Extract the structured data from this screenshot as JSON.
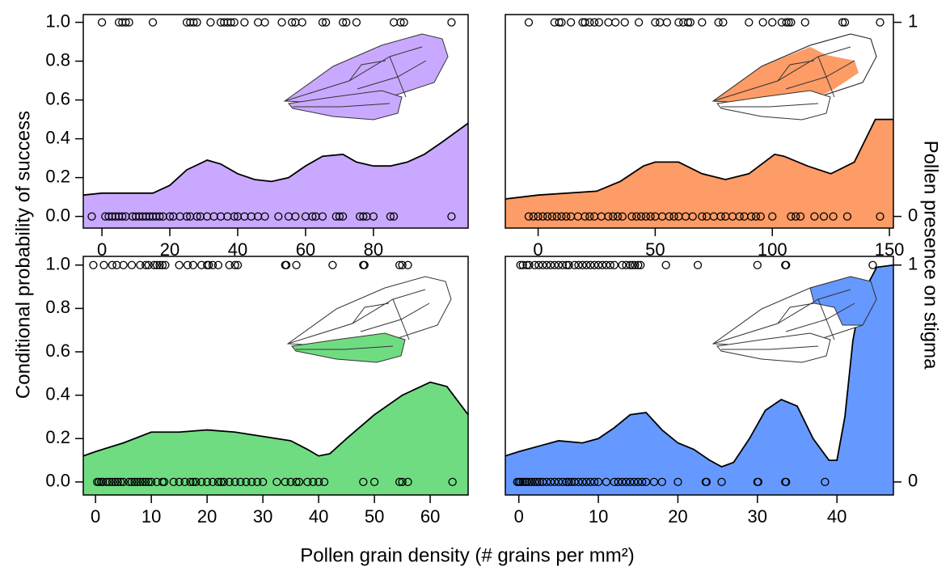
{
  "xlabel": "Pollen grain density (# grains per mm²)",
  "ylabel": "Conditional probability of success",
  "y2label": "Pollen presence on stigma",
  "chart_data": [
    {
      "type": "area",
      "color": "#c9a9ff",
      "x": [
        -5.5,
        0,
        10,
        15,
        20,
        25,
        31,
        35,
        40,
        45,
        50,
        55,
        60,
        65,
        71,
        75,
        80,
        85,
        90,
        95,
        100,
        107.9
      ],
      "values": [
        0.11,
        0.12,
        0.12,
        0.12,
        0.16,
        0.24,
        0.29,
        0.27,
        0.22,
        0.19,
        0.18,
        0.2,
        0.26,
        0.31,
        0.32,
        0.28,
        0.26,
        0.26,
        0.28,
        0.32,
        0.38,
        0.48
      ],
      "xlim": [
        -5.5,
        107.9
      ],
      "ylim": [
        -0.06,
        1.04
      ],
      "xticks": [
        0,
        20,
        40,
        60,
        80
      ],
      "yticks": [
        {
          "value": 0,
          "label": "0.0"
        },
        {
          "value": 0.2,
          "label": "0.2"
        },
        {
          "value": 0.4,
          "label": "0.4"
        },
        {
          "value": 0.6,
          "label": "0.6"
        },
        {
          "value": 0.8,
          "label": "0.8"
        },
        {
          "value": 1,
          "label": "1.0"
        }
      ],
      "points": [
        {
          "y": 1,
          "x": [
            0,
            5,
            6,
            7,
            8,
            15,
            25,
            26,
            27,
            28,
            32,
            35,
            36,
            37,
            38,
            39,
            42,
            46,
            48,
            53,
            56,
            57,
            59,
            65,
            66,
            71,
            72,
            75,
            86,
            88,
            89,
            103
          ]
        },
        {
          "y": 0,
          "x": [
            -3,
            1,
            2,
            3,
            4,
            5,
            6,
            7,
            9,
            10,
            11,
            12,
            13,
            14,
            15,
            16,
            17,
            18,
            20,
            21,
            23,
            25,
            26,
            28,
            29,
            31,
            33,
            35,
            37,
            39,
            40,
            42,
            44,
            46,
            48,
            52,
            55,
            57,
            60,
            62,
            63,
            65,
            69,
            70,
            71,
            76,
            77,
            78,
            80,
            85,
            86,
            103
          ]
        }
      ]
    },
    {
      "type": "area",
      "color": "#fd9c66",
      "x": [
        -14,
        0,
        25,
        35,
        45,
        50,
        60,
        70,
        80,
        90,
        101,
        105,
        115,
        125,
        135,
        144,
        151.7
      ],
      "values": [
        0.09,
        0.11,
        0.13,
        0.18,
        0.26,
        0.28,
        0.28,
        0.22,
        0.19,
        0.22,
        0.32,
        0.31,
        0.26,
        0.22,
        0.28,
        0.5,
        0.5
      ],
      "xlim": [
        -14,
        151.7
      ],
      "ylim": [
        -0.06,
        1.04
      ],
      "y2lim": [
        -0.06,
        1.04
      ],
      "xticks": [
        0,
        50,
        100,
        150
      ],
      "y2ticks": [
        0,
        1
      ],
      "points": [
        {
          "y": 1,
          "x": [
            -4,
            7,
            9,
            10,
            14,
            19,
            20,
            22,
            24,
            26,
            30,
            33,
            37,
            43,
            50,
            52,
            55,
            60,
            62,
            64,
            65,
            70,
            77,
            79,
            90,
            96,
            100,
            104,
            106,
            107,
            108,
            114,
            130,
            131,
            146
          ]
        },
        {
          "y": 0,
          "x": [
            -4,
            -2,
            0,
            2,
            4,
            6,
            8,
            10,
            12,
            14,
            17,
            20,
            22,
            24,
            27,
            30,
            32,
            34,
            36,
            40,
            42,
            44,
            46,
            48,
            50,
            53,
            56,
            58,
            60,
            63,
            66,
            70,
            72,
            75,
            78,
            80,
            83,
            86,
            88,
            91,
            93,
            95,
            100,
            108,
            110,
            112,
            118,
            122,
            126,
            132,
            146
          ]
        }
      ]
    },
    {
      "type": "area",
      "color": "#70dc82",
      "x": [
        -2.2,
        0,
        5,
        10,
        15,
        20,
        25,
        30,
        35,
        38,
        40,
        42,
        45,
        50,
        55,
        60,
        63,
        66.8
      ],
      "values": [
        0.12,
        0.14,
        0.18,
        0.23,
        0.23,
        0.24,
        0.23,
        0.21,
        0.19,
        0.15,
        0.12,
        0.13,
        0.2,
        0.31,
        0.4,
        0.46,
        0.44,
        0.31
      ],
      "xlim": [
        -2.2,
        66.8
      ],
      "ylim": [
        -0.06,
        1.04
      ],
      "xticks": [
        0,
        10,
        20,
        30,
        40,
        50,
        60
      ],
      "yticks": [
        {
          "value": 0,
          "label": "0.0"
        },
        {
          "value": 0.2,
          "label": "0.2"
        },
        {
          "value": 0.4,
          "label": "0.4"
        },
        {
          "value": 0.6,
          "label": "0.6"
        },
        {
          "value": 0.8,
          "label": "0.8"
        },
        {
          "value": 1,
          "label": "1.0"
        }
      ],
      "points": [
        {
          "y": 1,
          "x": [
            -0.4,
            1.5,
            3,
            3.8,
            5,
            6.5,
            8,
            9,
            9.5,
            10.5,
            11,
            11.5,
            12,
            12.5,
            15,
            16.5,
            17.5,
            19,
            20,
            20.3,
            21,
            22,
            24,
            25,
            25.5,
            34,
            34.2,
            36,
            42.5,
            48,
            48.2,
            54.5,
            55,
            56
          ]
        },
        {
          "y": 0,
          "x": [
            0.3,
            0.6,
            1,
            1.3,
            2,
            2.5,
            3,
            3.5,
            4,
            4.5,
            5,
            6,
            6.5,
            7,
            7.5,
            8,
            8.5,
            9,
            9.5,
            10,
            11,
            12,
            12.3,
            14,
            15,
            16,
            17,
            17.5,
            18,
            19,
            20,
            21,
            22,
            22.5,
            23,
            24,
            25,
            26,
            27,
            28,
            29,
            30,
            32.5,
            34,
            35,
            36,
            36.5,
            38,
            39,
            40,
            41,
            48,
            50,
            54.5,
            55,
            56,
            64
          ]
        }
      ]
    },
    {
      "type": "area",
      "color": "#6699ff",
      "x": [
        -1.7,
        0,
        3,
        5,
        8,
        10,
        12,
        14,
        16,
        18,
        20,
        22,
        24,
        25.5,
        27,
        29,
        31,
        33,
        35,
        37,
        39,
        40,
        41,
        42,
        43,
        45,
        47.1
      ],
      "values": [
        0.12,
        0.14,
        0.17,
        0.19,
        0.18,
        0.2,
        0.25,
        0.31,
        0.32,
        0.24,
        0.18,
        0.15,
        0.1,
        0.07,
        0.09,
        0.2,
        0.33,
        0.38,
        0.35,
        0.2,
        0.1,
        0.1,
        0.3,
        0.65,
        0.85,
        0.99,
        1.0
      ],
      "xlim": [
        -1.7,
        47.1
      ],
      "ylim": [
        -0.06,
        1.04
      ],
      "y2lim": [
        -0.06,
        1.04
      ],
      "xticks": [
        0,
        10,
        20,
        30,
        40
      ],
      "y2ticks": [
        0,
        1
      ],
      "points": [
        {
          "y": 1,
          "x": [
            0.2,
            0.5,
            1,
            1.3,
            2,
            2.5,
            3,
            3.5,
            4,
            4.5,
            5,
            5.5,
            6,
            6.3,
            7,
            7.5,
            8,
            8.5,
            9,
            9.5,
            10,
            10.5,
            11,
            11.5,
            12,
            13,
            13.5,
            14,
            14.3,
            14.6,
            15,
            15.3,
            18.5,
            22.5,
            30,
            33.5,
            33.6,
            44.5
          ]
        },
        {
          "y": 0,
          "x": [
            -0.2,
            0,
            0.2,
            0.5,
            0.8,
            1,
            1.3,
            1.6,
            2,
            2.3,
            2.6,
            3,
            3.5,
            4,
            4.5,
            5,
            5.5,
            6,
            6.3,
            6.6,
            7,
            7.5,
            8,
            8.5,
            9,
            9.5,
            10,
            11,
            12,
            12.5,
            13,
            13.5,
            14,
            14.5,
            15,
            15.5,
            16,
            17,
            18,
            20,
            23.5,
            23.6,
            25.5,
            30,
            30.1,
            33.5,
            33.6,
            38.5
          ]
        }
      ]
    }
  ]
}
